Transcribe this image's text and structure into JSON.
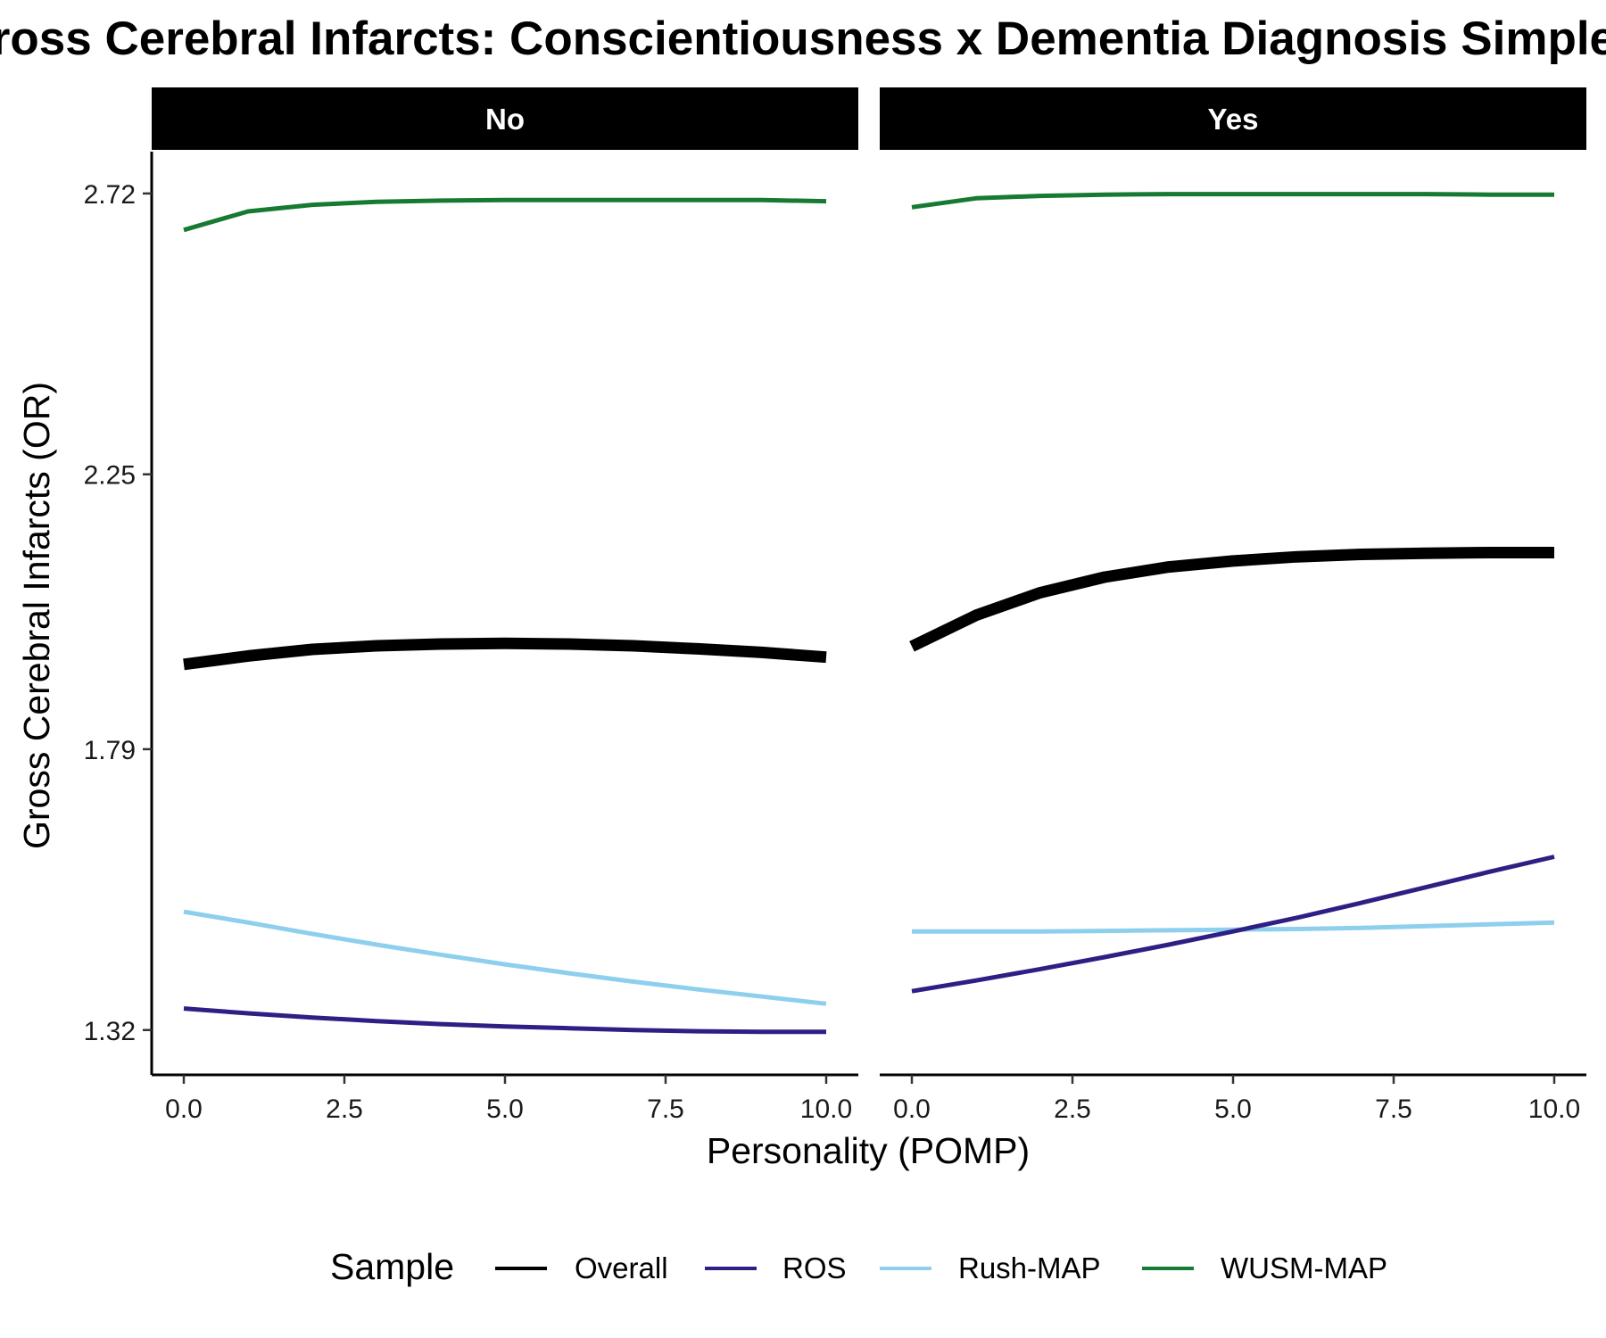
{
  "chart_data": {
    "type": "line",
    "title": "Gross Cerebral Infarcts: Conscientiousness x Dementia Diagnosis Simple Effects",
    "xlabel": "Personality (POMP)",
    "ylabel": "Gross Cerebral Infarcts (OR)",
    "xlim": [
      -0.5,
      10.5
    ],
    "ylim": [
      1.245,
      2.79
    ],
    "x_ticks": [
      "0.0",
      "2.5",
      "5.0",
      "7.5",
      "10.0"
    ],
    "y_ticks": [
      "1.32",
      "1.79",
      "2.25",
      "2.72"
    ],
    "grid": false,
    "legend": {
      "title": "Sample",
      "position": "bottom",
      "entries": [
        "Overall",
        "ROS",
        "Rush-MAP",
        "WUSM-MAP"
      ]
    },
    "colors": {
      "Overall": "#000000",
      "ROS": "#2e1f85",
      "Rush-MAP": "#8ecfee",
      "WUSM-MAP": "#177a33"
    },
    "x": [
      0,
      1,
      2,
      3,
      4,
      5,
      6,
      7,
      8,
      9,
      10
    ],
    "panels": [
      {
        "label": "No",
        "series": [
          {
            "name": "WUSM-MAP",
            "values": [
              2.659,
              2.69,
              2.701,
              2.706,
              2.708,
              2.709,
              2.709,
              2.709,
              2.709,
              2.709,
              2.707
            ]
          },
          {
            "name": "Overall",
            "values": [
              1.932,
              1.946,
              1.957,
              1.963,
              1.966,
              1.967,
              1.966,
              1.963,
              1.958,
              1.952,
              1.944
            ]
          },
          {
            "name": "Rush-MAP",
            "values": [
              1.518,
              1.5,
              1.481,
              1.463,
              1.446,
              1.43,
              1.415,
              1.401,
              1.388,
              1.376,
              1.364
            ]
          },
          {
            "name": "ROS",
            "values": [
              1.356,
              1.348,
              1.341,
              1.335,
              1.33,
              1.326,
              1.323,
              1.32,
              1.318,
              1.317,
              1.317
            ]
          }
        ]
      },
      {
        "label": "Yes",
        "series": [
          {
            "name": "WUSM-MAP",
            "values": [
              2.697,
              2.712,
              2.716,
              2.718,
              2.719,
              2.719,
              2.719,
              2.719,
              2.719,
              2.718,
              2.718
            ]
          },
          {
            "name": "Overall",
            "values": [
              1.962,
              2.014,
              2.052,
              2.078,
              2.095,
              2.105,
              2.112,
              2.116,
              2.118,
              2.119,
              2.119
            ]
          },
          {
            "name": "Rush-MAP",
            "values": [
              1.485,
              1.485,
              1.485,
              1.486,
              1.487,
              1.488,
              1.489,
              1.491,
              1.494,
              1.497,
              1.5
            ]
          },
          {
            "name": "ROS",
            "values": [
              1.385,
              1.403,
              1.422,
              1.442,
              1.463,
              1.485,
              1.508,
              1.533,
              1.559,
              1.585,
              1.61
            ]
          }
        ]
      }
    ]
  }
}
